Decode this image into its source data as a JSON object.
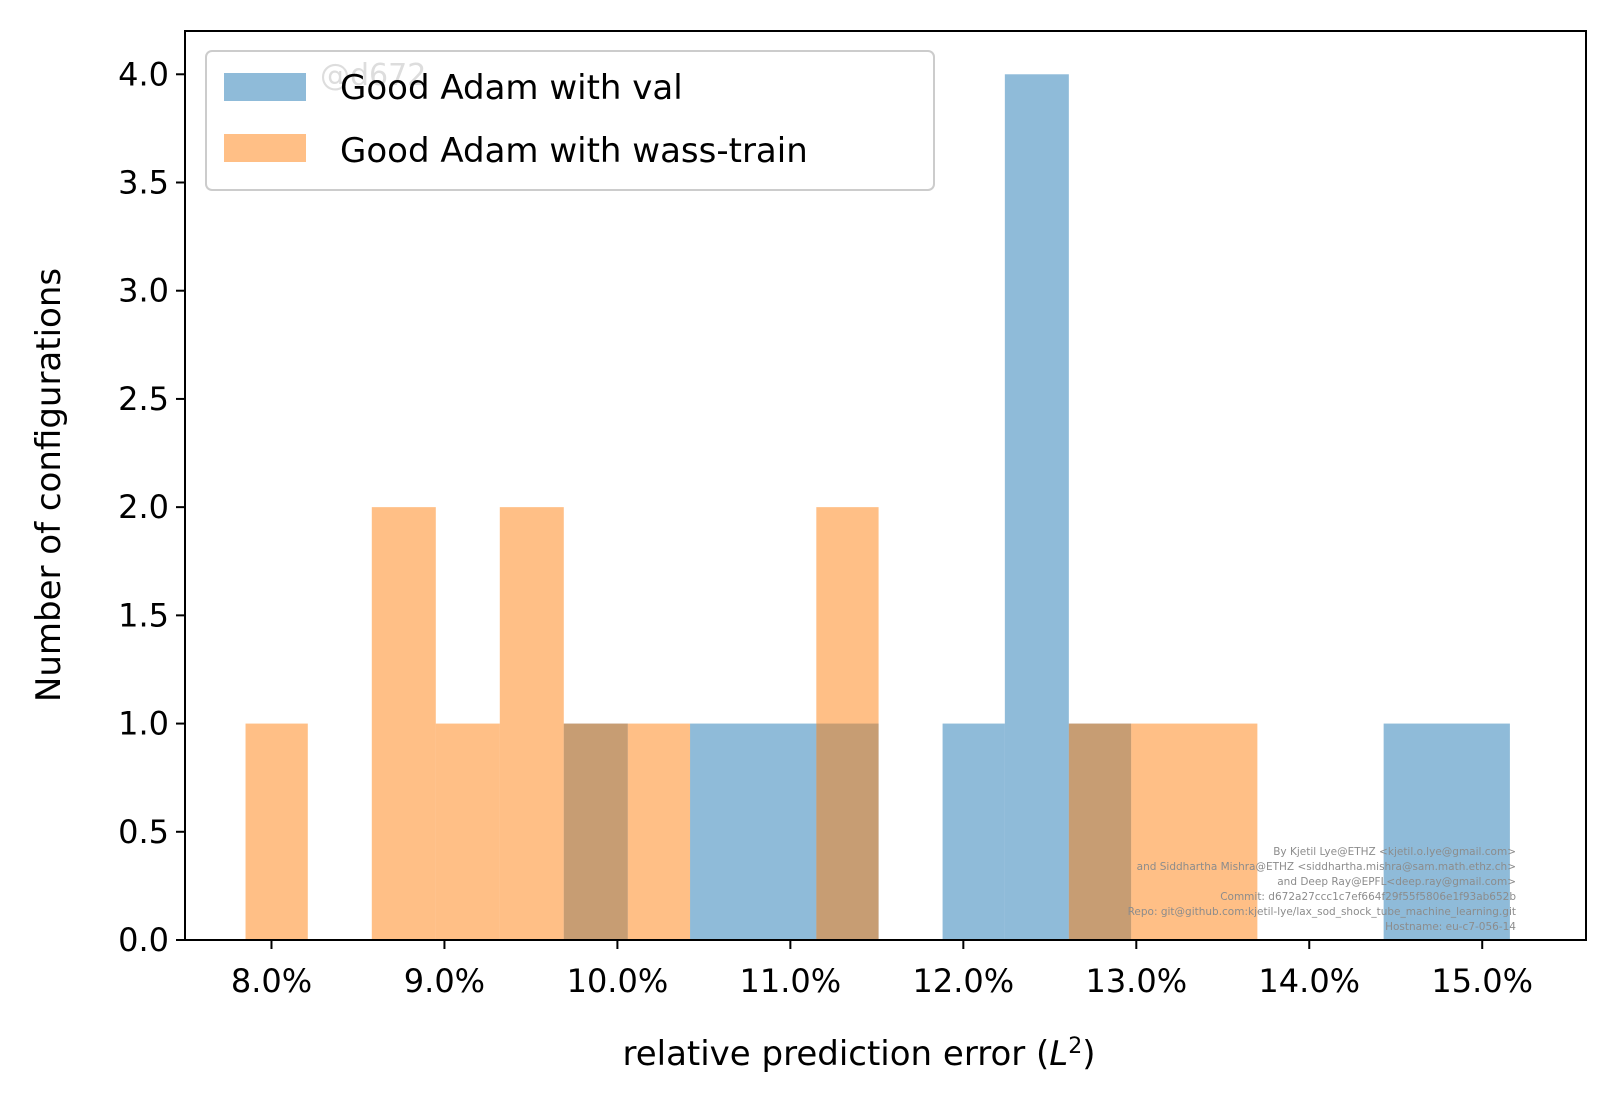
{
  "chart_data": {
    "type": "bar",
    "xlabel_main": "relative prediction error (",
    "xlabel_sym": "L",
    "xlabel_sup": "2",
    "xlabel_end": ")",
    "ylabel": "Number of configurations",
    "xlim": [
      7.5,
      15.6
    ],
    "ylim": [
      0,
      4.2
    ],
    "x_ticks": [
      8.0,
      9.0,
      10.0,
      11.0,
      12.0,
      13.0,
      14.0,
      15.0
    ],
    "x_tick_labels": [
      "8.0%",
      "9.0%",
      "10.0%",
      "11.0%",
      "12.0%",
      "13.0%",
      "14.0%",
      "15.0%"
    ],
    "y_ticks": [
      0.0,
      0.5,
      1.0,
      1.5,
      2.0,
      2.5,
      3.0,
      3.5,
      4.0
    ],
    "y_tick_labels": [
      "0.0",
      "0.5",
      "1.0",
      "1.5",
      "2.0",
      "2.5",
      "3.0",
      "3.5",
      "4.0"
    ],
    "legend_position": "top-left",
    "series": [
      {
        "name": "Good Adam with val",
        "color": "#1f77b4",
        "opacity": 0.5,
        "bins": [
          {
            "x0": 9.69,
            "x1": 10.06,
            "count": 1
          },
          {
            "x0": 10.42,
            "x1": 11.15,
            "count": 1
          },
          {
            "x0": 11.15,
            "x1": 11.51,
            "count": 1
          },
          {
            "x0": 11.88,
            "x1": 12.24,
            "count": 1
          },
          {
            "x0": 12.24,
            "x1": 12.61,
            "count": 4
          },
          {
            "x0": 12.61,
            "x1": 12.97,
            "count": 1
          },
          {
            "x0": 14.43,
            "x1": 15.16,
            "count": 1
          }
        ]
      },
      {
        "name": "Good Adam with wass-train",
        "color": "#ff7f0e",
        "opacity": 0.5,
        "bins": [
          {
            "x0": 7.85,
            "x1": 8.21,
            "count": 1
          },
          {
            "x0": 8.58,
            "x1": 8.95,
            "count": 2
          },
          {
            "x0": 8.95,
            "x1": 9.32,
            "count": 1
          },
          {
            "x0": 9.32,
            "x1": 9.69,
            "count": 2
          },
          {
            "x0": 9.69,
            "x1": 10.06,
            "count": 1
          },
          {
            "x0": 10.06,
            "x1": 10.42,
            "count": 1
          },
          {
            "x0": 11.15,
            "x1": 11.51,
            "count": 2
          },
          {
            "x0": 12.61,
            "x1": 12.97,
            "count": 1
          },
          {
            "x0": 12.97,
            "x1": 13.7,
            "count": 1
          }
        ]
      }
    ],
    "watermark": "@d672",
    "credits": [
      "By Kjetil Lye@ETHZ <kjetil.o.lye@gmail.com>",
      "and Siddhartha Mishra@ETHZ <siddhartha.mishra@sam.math.ethz.ch>",
      "and Deep Ray@EPFL<deep.ray@gmail.com>",
      "Commit: d672a27ccc1c7ef664f29f55f5806e1f93ab652b",
      "Repo: git@github.com:kjetil-lye/lax_sod_shock_tube_machine_learning.git",
      "Hostname: eu-c7-056-14"
    ]
  }
}
